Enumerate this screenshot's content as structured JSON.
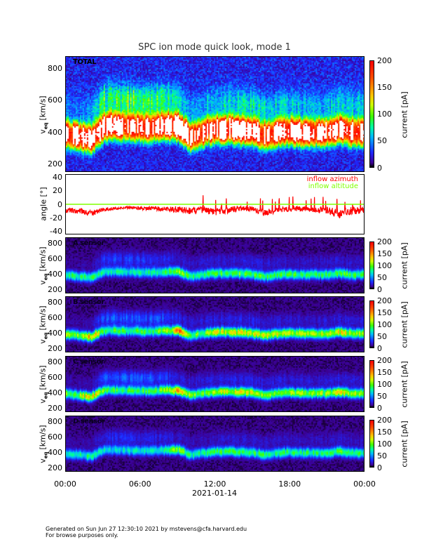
{
  "title": "SPC ion mode quick look, mode 1",
  "footer": {
    "line1": "Generated on Sun Jun 27 12:30:10 2021 by mstevens@cfa.harvard.edu",
    "line2": "For browse purposes only."
  },
  "chart_data": {
    "type": "heatmap",
    "title": "SPC ion mode quick look, mode 1",
    "x_ticks": [
      "00:00",
      "06:00",
      "12:00",
      "18:00",
      "00:00"
    ],
    "x_tick_hours": [
      0,
      6,
      12,
      18,
      24
    ],
    "x_range_hours": [
      0,
      24
    ],
    "date_label": "2021-01-14",
    "data_gap_hour": 12.3,
    "ylabel": {
      "symbol": "v",
      "subscript": "eq",
      "units": "[km/s]"
    },
    "colorbar": {
      "label": "current [pA]",
      "range": [
        0,
        200
      ],
      "ticks": [
        "0",
        "50",
        "100",
        "150",
        "200"
      ]
    },
    "colorbar_ticks_large": [
      "0",
      "50",
      "100",
      "150",
      "200"
    ],
    "time_hours": [
      0,
      1,
      2,
      3,
      4,
      5,
      6,
      7,
      8,
      9,
      10,
      11,
      12,
      13,
      14,
      15,
      16,
      17,
      18,
      19,
      20,
      21,
      22,
      23,
      24
    ],
    "bulk_velocity_kms": [
      390,
      375,
      355,
      440,
      440,
      435,
      430,
      430,
      440,
      440,
      375,
      400,
      420,
      420,
      415,
      405,
      375,
      400,
      410,
      400,
      400,
      400,
      420,
      400,
      400
    ],
    "panels": [
      {
        "label": "TOTAL",
        "ylim": [
          150,
          875
        ],
        "yticks": [
          "200",
          "400",
          "600",
          "800"
        ],
        "ytick_values": [
          200,
          400,
          600,
          800
        ],
        "peak_current_pA": [
          210,
          215,
          230,
          200,
          195,
          190,
          190,
          195,
          200,
          230,
          190,
          195,
          205,
          210,
          210,
          205,
          200,
          200,
          200,
          195,
          195,
          195,
          205,
          195,
          195
        ],
        "upper_halo_pA": [
          20,
          20,
          25,
          60,
          70,
          70,
          65,
          65,
          55,
          40,
          35,
          35,
          40,
          40,
          45,
          45,
          40,
          40,
          35,
          35,
          35,
          35,
          40,
          35,
          35
        ],
        "background_pA": 24
      },
      {
        "label": "A sensor",
        "ylim": [
          150,
          880
        ],
        "yticks": [
          "200",
          "400",
          "600",
          "800"
        ],
        "ytick_values": [
          200,
          400,
          600,
          800
        ],
        "peak_current_pA": [
          75,
          75,
          80,
          70,
          65,
          65,
          65,
          70,
          80,
          105,
          75,
          75,
          85,
          85,
          90,
          85,
          80,
          80,
          80,
          80,
          80,
          80,
          90,
          80,
          80
        ],
        "upper_halo_pA": [
          4,
          4,
          5,
          20,
          22,
          22,
          20,
          20,
          18,
          12,
          10,
          10,
          12,
          12,
          14,
          14,
          12,
          12,
          10,
          10,
          10,
          10,
          12,
          10,
          10
        ],
        "background_pA": 7
      },
      {
        "label": "B sensor",
        "ylim": [
          150,
          880
        ],
        "yticks": [
          "200",
          "400",
          "600",
          "800"
        ],
        "ytick_values": [
          200,
          400,
          600,
          800
        ],
        "peak_current_pA": [
          95,
          95,
          140,
          85,
          80,
          80,
          80,
          85,
          95,
          150,
          90,
          90,
          110,
          115,
          120,
          115,
          110,
          110,
          110,
          105,
          105,
          105,
          120,
          105,
          105
        ],
        "upper_halo_pA": [
          5,
          5,
          6,
          28,
          30,
          30,
          28,
          28,
          24,
          16,
          12,
          12,
          14,
          14,
          16,
          16,
          14,
          14,
          12,
          12,
          12,
          12,
          14,
          12,
          12
        ],
        "background_pA": 7
      },
      {
        "label": "C sensor",
        "ylim": [
          150,
          880
        ],
        "yticks": [
          "200",
          "400",
          "600",
          "800"
        ],
        "ytick_values": [
          200,
          400,
          600,
          800
        ],
        "peak_current_pA": [
          90,
          95,
          140,
          85,
          80,
          80,
          80,
          85,
          95,
          145,
          90,
          90,
          105,
          110,
          115,
          110,
          105,
          105,
          105,
          100,
          100,
          100,
          115,
          100,
          100
        ],
        "upper_halo_pA": [
          5,
          5,
          6,
          26,
          28,
          28,
          26,
          26,
          22,
          15,
          12,
          12,
          14,
          14,
          16,
          16,
          14,
          14,
          12,
          12,
          12,
          12,
          14,
          12,
          12
        ],
        "background_pA": 7
      },
      {
        "label": "D sensor",
        "ylim": [
          150,
          880
        ],
        "yticks": [
          "200",
          "400",
          "600",
          "800"
        ],
        "ytick_values": [
          200,
          400,
          600,
          800
        ],
        "peak_current_pA": [
          70,
          70,
          75,
          65,
          60,
          60,
          60,
          65,
          75,
          100,
          70,
          70,
          80,
          80,
          85,
          80,
          75,
          75,
          75,
          75,
          75,
          75,
          85,
          75,
          75
        ],
        "upper_halo_pA": [
          4,
          4,
          5,
          16,
          18,
          18,
          16,
          16,
          14,
          10,
          8,
          8,
          10,
          10,
          12,
          12,
          10,
          10,
          9,
          9,
          9,
          9,
          10,
          9,
          9
        ],
        "background_pA": 7
      }
    ],
    "angle_panel": {
      "ylabel": "angle [°]",
      "ylim": [
        -45,
        45
      ],
      "yticks": [
        "-40",
        "-20",
        "0",
        "20",
        "40"
      ],
      "ytick_values": [
        -40,
        -20,
        0,
        20,
        40
      ],
      "series": [
        {
          "name": "inflow azimuth",
          "color": "#ff0000",
          "mean_deg": [
            -9,
            -10,
            -14,
            -8,
            -6,
            -5,
            -6,
            -6,
            -7,
            -8,
            -10,
            -9,
            -12,
            -9,
            -6,
            -7,
            -13,
            -9,
            -7,
            -7,
            -8,
            -9,
            -14,
            -10,
            -9
          ],
          "spread_deg": [
            4,
            4,
            5,
            3,
            2,
            2,
            3,
            3,
            4,
            5,
            5,
            5,
            6,
            5,
            4,
            4,
            5,
            4,
            4,
            4,
            4,
            5,
            7,
            6,
            5
          ]
        },
        {
          "name": "inflow altitude",
          "color": "#80ff00",
          "mean_deg": [
            0,
            0,
            0,
            0,
            0,
            0,
            0,
            0,
            0,
            0,
            0,
            0,
            0,
            0,
            0,
            0,
            0,
            0,
            0,
            0,
            0,
            0,
            0,
            0,
            0
          ]
        }
      ]
    }
  }
}
